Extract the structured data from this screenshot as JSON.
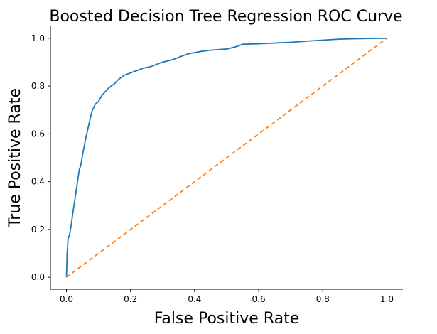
{
  "chart_data": {
    "type": "line",
    "title": "Boosted Decision Tree Regression ROC Curve",
    "xlabel": "False Positive Rate",
    "ylabel": "True Positive Rate",
    "xlim": [
      -0.05,
      1.05
    ],
    "ylim": [
      -0.05,
      1.05
    ],
    "xticks": [
      0.0,
      0.2,
      0.4,
      0.6,
      0.8,
      1.0
    ],
    "yticks": [
      0.0,
      0.2,
      0.4,
      0.6,
      0.8,
      1.0
    ],
    "xtick_labels": [
      "0.0",
      "0.2",
      "0.4",
      "0.6",
      "0.8",
      "1.0"
    ],
    "ytick_labels": [
      "0.0",
      "0.2",
      "0.4",
      "0.6",
      "0.8",
      "1.0"
    ],
    "grid": false,
    "spines": "left-bottom",
    "series": [
      {
        "color": "#1f77b4",
        "style": "solid",
        "x": [
          0.0,
          0.002,
          0.005,
          0.01,
          0.015,
          0.02,
          0.03,
          0.04,
          0.045,
          0.05,
          0.06,
          0.07,
          0.075,
          0.08,
          0.085,
          0.09,
          0.095,
          0.1,
          0.11,
          0.12,
          0.13,
          0.14,
          0.15,
          0.16,
          0.17,
          0.18,
          0.2,
          0.22,
          0.24,
          0.26,
          0.28,
          0.3,
          0.33,
          0.36,
          0.38,
          0.4,
          0.42,
          0.45,
          0.5,
          0.53,
          0.55,
          0.6,
          0.65,
          0.7,
          0.75,
          0.8,
          0.85,
          0.9,
          0.95,
          1.0
        ],
        "y": [
          0.0,
          0.1,
          0.16,
          0.18,
          0.22,
          0.27,
          0.36,
          0.45,
          0.47,
          0.51,
          0.58,
          0.64,
          0.67,
          0.695,
          0.71,
          0.725,
          0.73,
          0.735,
          0.76,
          0.775,
          0.79,
          0.8,
          0.81,
          0.825,
          0.835,
          0.845,
          0.855,
          0.865,
          0.875,
          0.88,
          0.89,
          0.9,
          0.91,
          0.925,
          0.935,
          0.94,
          0.945,
          0.95,
          0.955,
          0.965,
          0.975,
          0.977,
          0.98,
          0.983,
          0.988,
          0.992,
          0.996,
          0.998,
          0.999,
          1.0
        ]
      },
      {
        "color": "#ff7f0e",
        "style": "dashed",
        "x": [
          0.0,
          1.0
        ],
        "y": [
          0.0,
          1.0
        ]
      }
    ]
  }
}
